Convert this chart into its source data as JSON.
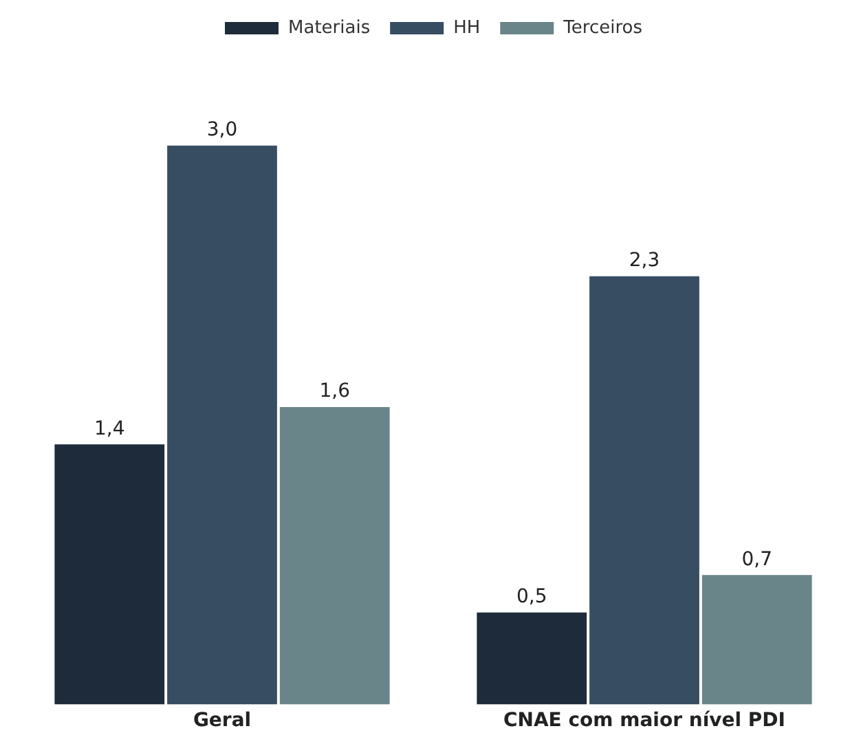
{
  "chart_data": {
    "type": "bar",
    "categories": [
      "Geral",
      "CNAE com maior nível PDI"
    ],
    "series": [
      {
        "name": "Materiais",
        "color": "#1e2b3a",
        "values": [
          1.4,
          0.5
        ],
        "value_labels": [
          "1,4",
          "0,5"
        ]
      },
      {
        "name": "HH",
        "color": "#374d62",
        "values": [
          3.0,
          2.3
        ],
        "value_labels": [
          "3,0",
          "2,3"
        ]
      },
      {
        "name": "Terceiros",
        "color": "#698589",
        "values": [
          1.6,
          0.7
        ],
        "value_labels": [
          "1,6",
          "0,7"
        ]
      }
    ],
    "legend": "top",
    "grid": false
  }
}
